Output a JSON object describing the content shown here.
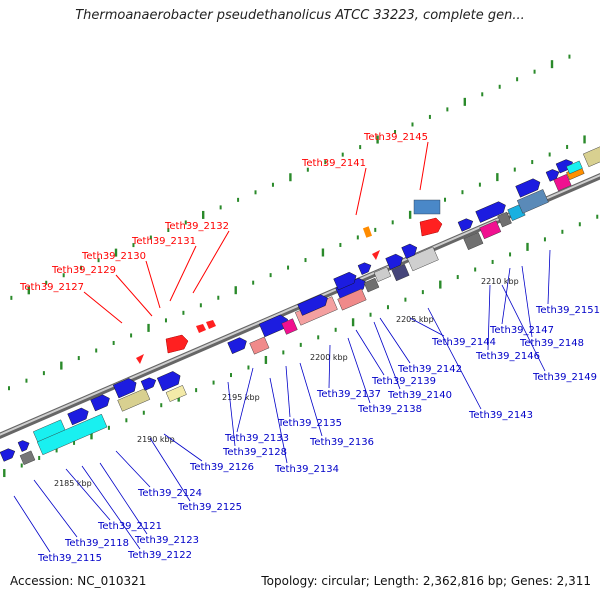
{
  "title": "Thermoanaerobacter pseudethanolicus ATCC 33223, complete gen...",
  "footer": {
    "accession": "Accession: NC_010321",
    "summary": "Topology: circular; Length: 2,362,816 bp; Genes: 2,311"
  },
  "colors": {
    "highlight_label": "#ff0000",
    "gene_label": "#0000c8",
    "backbone": "#999999",
    "tick": "#2a8a2a"
  },
  "ruler": [
    {
      "label": "2185 kbp"
    },
    {
      "label": "2190 kbp"
    },
    {
      "label": "2195 kbp"
    },
    {
      "label": "2200 kbp"
    },
    {
      "label": "2205 kbp"
    },
    {
      "label": "2210 kbp"
    }
  ],
  "highlighted_genes": [
    {
      "label": "Teth39_2127"
    },
    {
      "label": "Teth39_2129"
    },
    {
      "label": "Teth39_2130"
    },
    {
      "label": "Teth39_2131"
    },
    {
      "label": "Teth39_2132"
    },
    {
      "label": "Teth39_2141"
    },
    {
      "label": "Teth39_2145"
    }
  ],
  "gene_labels": [
    {
      "label": "Teth39_2115"
    },
    {
      "label": "Teth39_2118"
    },
    {
      "label": "Teth39_2121"
    },
    {
      "label": "Teth39_2122"
    },
    {
      "label": "Teth39_2123"
    },
    {
      "label": "Teth39_2124"
    },
    {
      "label": "Teth39_2125"
    },
    {
      "label": "Teth39_2126"
    },
    {
      "label": "Teth39_2128"
    },
    {
      "label": "Teth39_2133"
    },
    {
      "label": "Teth39_2134"
    },
    {
      "label": "Teth39_2135"
    },
    {
      "label": "Teth39_2136"
    },
    {
      "label": "Teth39_2137"
    },
    {
      "label": "Teth39_2138"
    },
    {
      "label": "Teth39_2139"
    },
    {
      "label": "Teth39_2140"
    },
    {
      "label": "Teth39_2142"
    },
    {
      "label": "Teth39_2143"
    },
    {
      "label": "Teth39_2144"
    },
    {
      "label": "Teth39_2146"
    },
    {
      "label": "Teth39_2147"
    },
    {
      "label": "Teth39_2148"
    },
    {
      "label": "Teth39_2149"
    },
    {
      "label": "Teth39_2151"
    }
  ]
}
